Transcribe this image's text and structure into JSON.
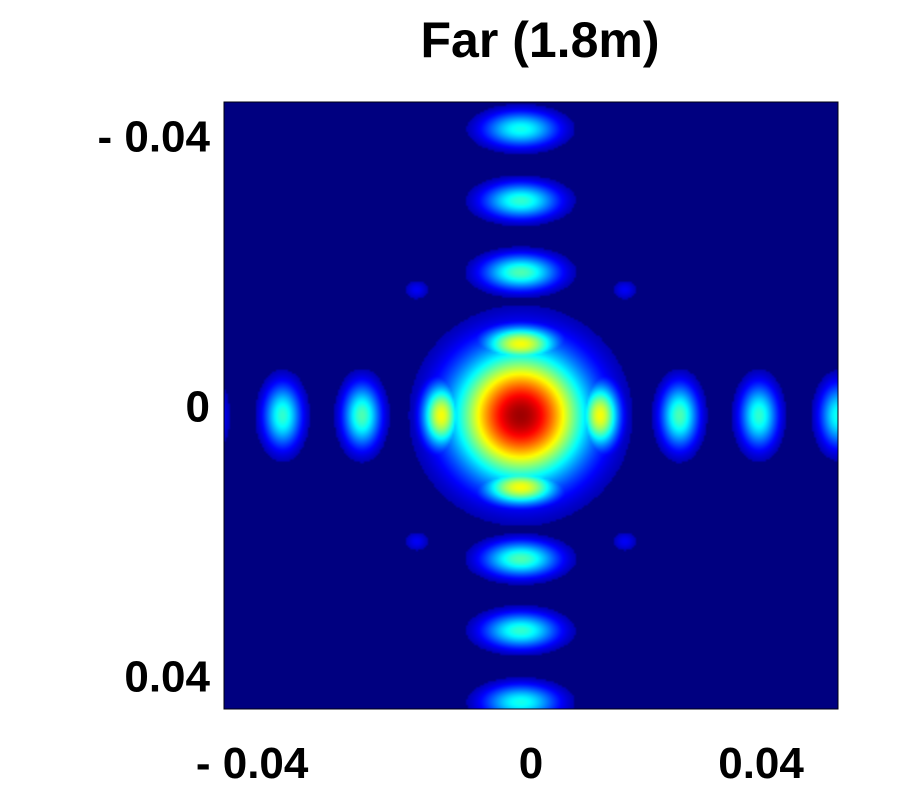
{
  "chart_data": {
    "type": "heatmap",
    "title": "Far (1.8m)",
    "xlabel": "",
    "ylabel": "",
    "xlim": [
      -0.045,
      0.045
    ],
    "ylim": [
      -0.045,
      0.045
    ],
    "y_axis_direction": "down",
    "colormap": "jet",
    "grid": false,
    "x_ticks": [
      {
        "value": -0.04,
        "label": "- 0.04"
      },
      {
        "value": 0,
        "label": "0"
      },
      {
        "value": 0.04,
        "label": "0.04"
      }
    ],
    "y_ticks": [
      {
        "value": -0.04,
        "label": "- 0.04"
      },
      {
        "value": 0,
        "label": "0"
      },
      {
        "value": 0.04,
        "label": "0.04"
      }
    ],
    "beam_center": {
      "x": -0.0015,
      "y": 0.0015
    },
    "lobe_spacing": 0.0113,
    "lobes_per_arm": 4,
    "peak_intensity": 1.0,
    "first_lobe_intensity": 0.55,
    "outer_lobe_intensity": 0.3,
    "corner_lobe_intensity": 0.06
  }
}
